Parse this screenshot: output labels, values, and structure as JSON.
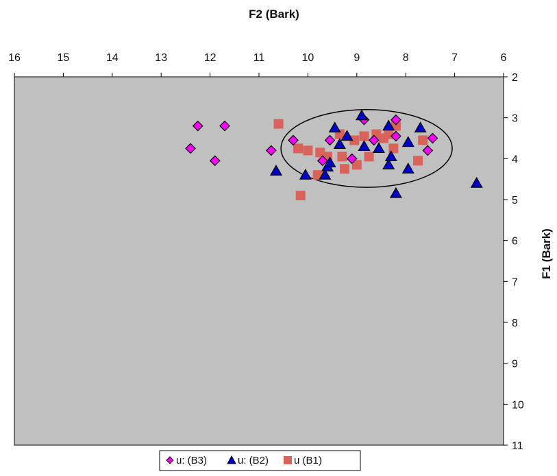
{
  "chart_data": {
    "type": "scatter",
    "title": "",
    "xlabel": "F2 (Bark)",
    "ylabel": "F1 (Bark)",
    "x_axis_position": "top",
    "y_axis_position": "right",
    "x_reversed": true,
    "y_reversed": true,
    "xlim": [
      6,
      16
    ],
    "ylim": [
      2,
      11
    ],
    "x_ticks": [
      "16",
      "15",
      "14",
      "13",
      "12",
      "11",
      "10",
      "9",
      "8",
      "7",
      "6"
    ],
    "y_ticks": [
      "2",
      "3",
      "4",
      "5",
      "6",
      "7",
      "8",
      "9",
      "10",
      "11"
    ],
    "grid": false,
    "legend_position": "bottom",
    "background_color": "#c0c0c0",
    "series": [
      {
        "name": "u: (B3)",
        "marker": "diamond",
        "color": "#ff00ff",
        "points": [
          [
            12.25,
            3.2
          ],
          [
            11.7,
            3.2
          ],
          [
            12.4,
            3.75
          ],
          [
            11.9,
            4.05
          ],
          [
            10.75,
            3.8
          ],
          [
            10.3,
            3.55
          ],
          [
            9.55,
            3.55
          ],
          [
            9.1,
            4.0
          ],
          [
            8.85,
            3.05
          ],
          [
            8.65,
            3.55
          ],
          [
            8.2,
            3.05
          ],
          [
            8.2,
            3.45
          ],
          [
            7.45,
            3.5
          ],
          [
            7.55,
            3.8
          ],
          [
            9.7,
            4.05
          ]
        ]
      },
      {
        "name": "u: (B2)",
        "marker": "triangle",
        "color": "#0000cc",
        "points": [
          [
            10.65,
            4.3
          ],
          [
            10.05,
            4.4
          ],
          [
            9.65,
            4.4
          ],
          [
            9.6,
            4.2
          ],
          [
            9.55,
            4.1
          ],
          [
            9.45,
            3.25
          ],
          [
            9.35,
            3.65
          ],
          [
            9.2,
            3.45
          ],
          [
            8.9,
            2.95
          ],
          [
            8.85,
            3.7
          ],
          [
            8.55,
            3.75
          ],
          [
            8.35,
            3.2
          ],
          [
            8.3,
            3.95
          ],
          [
            8.35,
            4.15
          ],
          [
            8.2,
            4.85
          ],
          [
            7.95,
            3.6
          ],
          [
            7.95,
            4.25
          ],
          [
            7.7,
            3.25
          ],
          [
            6.55,
            4.6
          ]
        ]
      },
      {
        "name": "u (B1)",
        "marker": "square",
        "color": "#d9625a",
        "points": [
          [
            10.6,
            3.15
          ],
          [
            10.2,
            3.75
          ],
          [
            10.0,
            3.8
          ],
          [
            9.8,
            4.4
          ],
          [
            9.75,
            3.85
          ],
          [
            9.6,
            3.95
          ],
          [
            9.35,
            3.4
          ],
          [
            9.3,
            3.95
          ],
          [
            9.25,
            4.25
          ],
          [
            9.05,
            3.55
          ],
          [
            9.0,
            4.15
          ],
          [
            8.85,
            3.45
          ],
          [
            8.75,
            3.95
          ],
          [
            8.6,
            3.4
          ],
          [
            8.45,
            3.5
          ],
          [
            8.35,
            3.4
          ],
          [
            8.25,
            3.75
          ],
          [
            8.2,
            3.2
          ],
          [
            7.75,
            4.05
          ],
          [
            7.65,
            3.55
          ],
          [
            10.15,
            4.9
          ]
        ]
      }
    ],
    "annotations": [
      {
        "shape": "ellipse",
        "center": [
          8.8,
          3.75
        ],
        "radius_x": 1.75,
        "radius_y": 0.95,
        "stroke": "#000000"
      }
    ]
  }
}
